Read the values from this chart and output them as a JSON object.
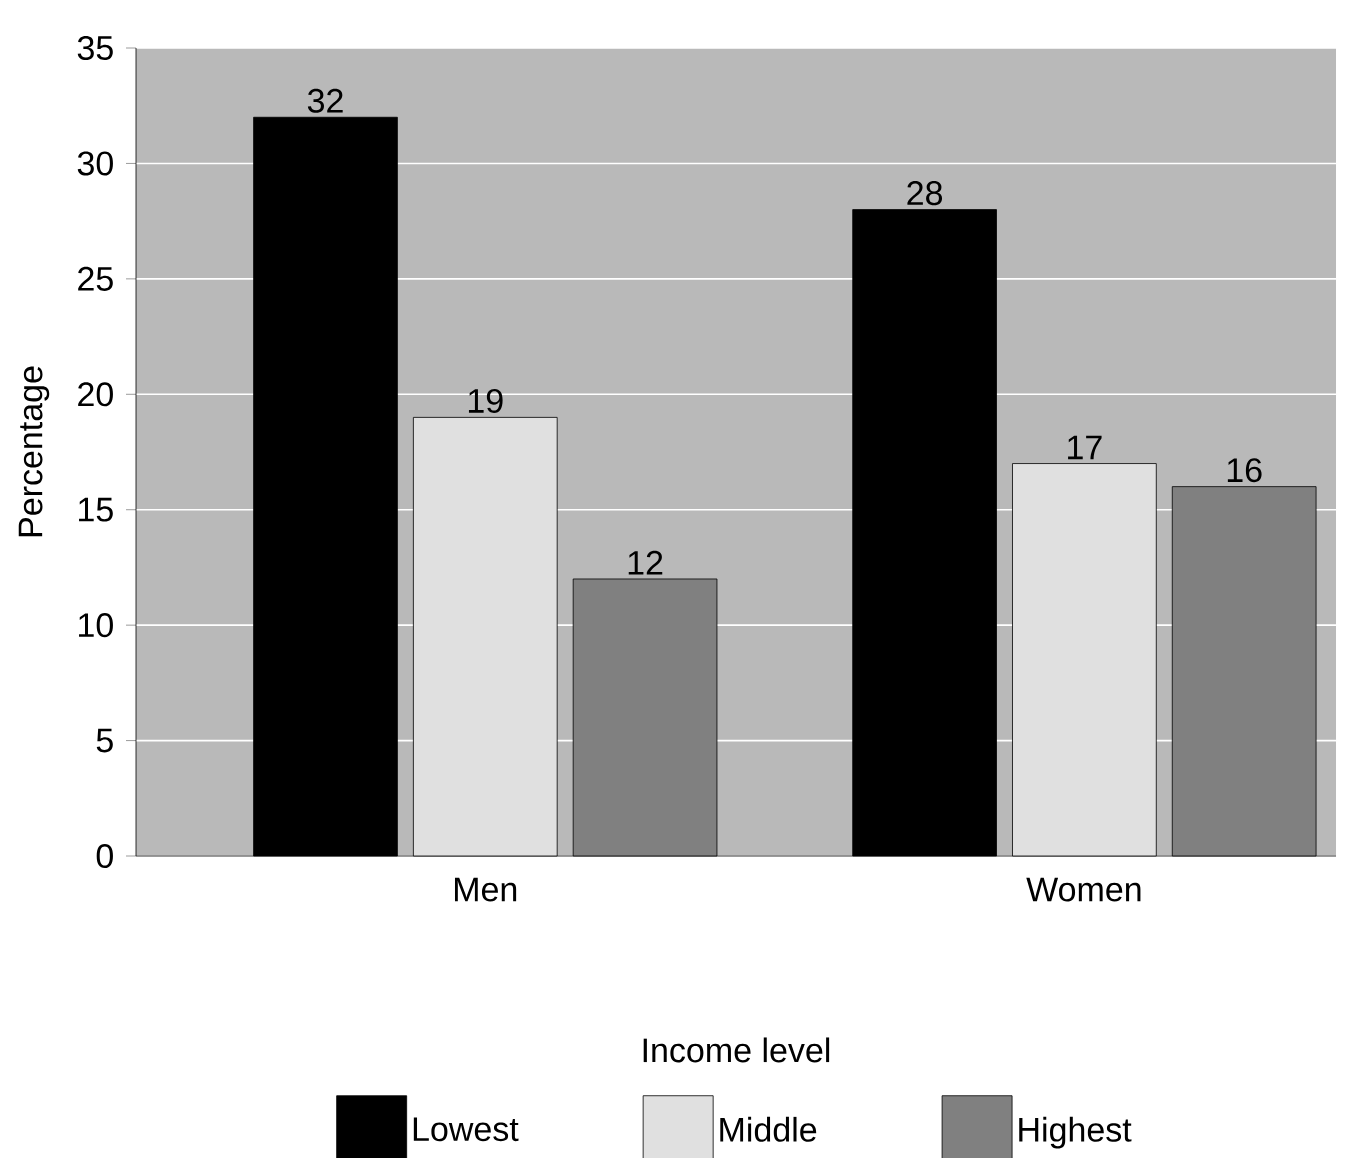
{
  "chart_data": {
    "type": "bar",
    "xlabel": "Income level",
    "ylabel": "Percentage",
    "categories": [
      "Men",
      "Women"
    ],
    "series": [
      {
        "name": "Lowest",
        "color": "#000000",
        "values": [
          32,
          28
        ]
      },
      {
        "name": "Middle",
        "color": "#e0e0e0",
        "values": [
          19,
          17
        ]
      },
      {
        "name": "Highest",
        "color": "#808080",
        "values": [
          12,
          16
        ]
      }
    ],
    "ylim": [
      0,
      35
    ],
    "yticks": [
      0,
      5,
      10,
      15,
      20,
      25,
      30,
      35
    ],
    "grid": "y",
    "legend": "bottom",
    "data_labels": true
  }
}
